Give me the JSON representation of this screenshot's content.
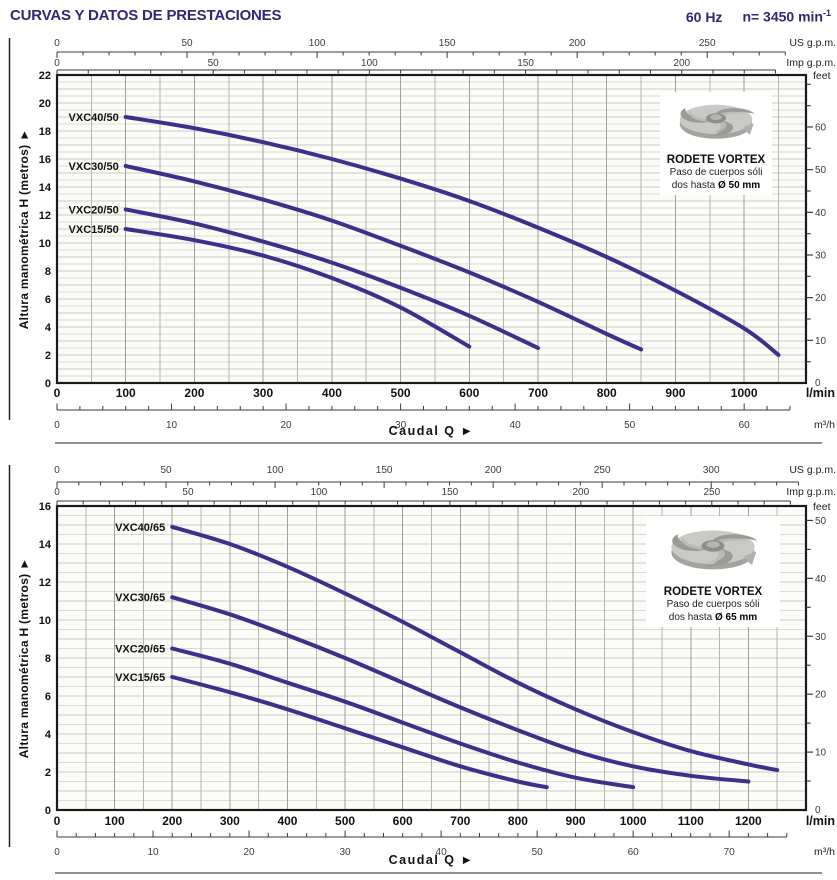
{
  "header": {
    "title": "CURVAS Y DATOS DE PRESTACIONES",
    "frequency": "60 Hz",
    "speed": "n= 3450 min",
    "speed_exponent": "-1"
  },
  "axis_labels": {
    "y_title": "Altura manométrica H  (metros)",
    "x_title": "Caudal Q",
    "us": "US g.p.m.",
    "imp": "Imp g.p.m.",
    "lmin": "l/min",
    "m3h": "m³/h",
    "feet": "feet",
    "arrow": "►"
  },
  "insets": [
    {
      "title": "RODETE VORTEX",
      "line1": "Paso de cuerpos sóli",
      "line2_prefix": "dos hasta ",
      "line2_bold": "Ø 50 mm"
    },
    {
      "title": "RODETE VORTEX",
      "line1": "Paso de cuerpos sóli",
      "line2_prefix": "dos hasta ",
      "line2_bold": "Ø 65 mm"
    }
  ],
  "colors": {
    "accent_navy": "#2f2779",
    "curve": "#39318a",
    "grid_h": "#dcdcd6",
    "grid_h_major": "#c9c9c3",
    "grid_v": "#b6b6b0",
    "grid_v_major": "#9f9f99",
    "plot_bg": "#fbfbf8",
    "axis_dark": "#1a1a1a",
    "axis_gray": "#3a3a3a"
  },
  "chart_data": [
    {
      "type": "line",
      "x_axis": {
        "unit": "l/min",
        "max": 1090,
        "grid_step": 50,
        "label_step": 100,
        "label_max": 1000
      },
      "y_axis": {
        "unit": "metros",
        "max": 22,
        "label_step": 2,
        "grid_step": 0.5
      },
      "secondary_axes": {
        "us_gpm": {
          "lmin_per_unit": 3.785,
          "tick_step": 10,
          "label_step": 50
        },
        "imp_gpm": {
          "lmin_per_unit": 4.546,
          "tick_step": 10,
          "label_step": 50
        },
        "m3h": {
          "lmin_per_unit": 16.6667,
          "tick_step": 2,
          "label_step": 10
        },
        "feet": {
          "m_per_unit": 0.3048,
          "tick_step": 5,
          "label_step": 10
        }
      },
      "series": [
        {
          "name": "VXC40/50",
          "points": [
            [
              100,
              19.0
            ],
            [
              200,
              18.2
            ],
            [
              300,
              17.2
            ],
            [
              400,
              16.0
            ],
            [
              500,
              14.6
            ],
            [
              600,
              13.0
            ],
            [
              700,
              11.1
            ],
            [
              800,
              9.0
            ],
            [
              900,
              6.6
            ],
            [
              1000,
              3.9
            ],
            [
              1050,
              2.0
            ]
          ]
        },
        {
          "name": "VXC30/50",
          "points": [
            [
              100,
              15.5
            ],
            [
              200,
              14.4
            ],
            [
              300,
              13.1
            ],
            [
              400,
              11.6
            ],
            [
              500,
              9.8
            ],
            [
              600,
              7.9
            ],
            [
              700,
              5.8
            ],
            [
              800,
              3.5
            ],
            [
              850,
              2.4
            ]
          ]
        },
        {
          "name": "VXC20/50",
          "points": [
            [
              100,
              12.4
            ],
            [
              200,
              11.4
            ],
            [
              300,
              10.1
            ],
            [
              400,
              8.6
            ],
            [
              500,
              6.8
            ],
            [
              600,
              4.8
            ],
            [
              700,
              2.5
            ]
          ]
        },
        {
          "name": "VXC15/50",
          "points": [
            [
              100,
              11.0
            ],
            [
              200,
              10.2
            ],
            [
              300,
              9.1
            ],
            [
              400,
              7.5
            ],
            [
              500,
              5.4
            ],
            [
              600,
              2.6
            ]
          ]
        }
      ]
    },
    {
      "type": "line",
      "x_axis": {
        "unit": "l/min",
        "max": 1300,
        "grid_step": 50,
        "label_step": 100,
        "label_max": 1200
      },
      "y_axis": {
        "unit": "metros",
        "max": 16,
        "label_step": 2,
        "grid_step": 0.5
      },
      "secondary_axes": {
        "us_gpm": {
          "lmin_per_unit": 3.785,
          "tick_step": 10,
          "label_step": 50
        },
        "imp_gpm": {
          "lmin_per_unit": 4.546,
          "tick_step": 10,
          "label_step": 50
        },
        "m3h": {
          "lmin_per_unit": 16.6667,
          "tick_step": 2,
          "label_step": 10
        },
        "feet": {
          "m_per_unit": 0.3048,
          "tick_step": 5,
          "label_step": 10
        }
      },
      "series": [
        {
          "name": "VXC40/65",
          "points": [
            [
              200,
              14.9
            ],
            [
              300,
              14.0
            ],
            [
              400,
              12.8
            ],
            [
              500,
              11.4
            ],
            [
              600,
              9.9
            ],
            [
              700,
              8.3
            ],
            [
              800,
              6.7
            ],
            [
              900,
              5.3
            ],
            [
              1000,
              4.1
            ],
            [
              1100,
              3.1
            ],
            [
              1200,
              2.4
            ],
            [
              1250,
              2.1
            ]
          ]
        },
        {
          "name": "VXC30/65",
          "points": [
            [
              200,
              11.2
            ],
            [
              300,
              10.3
            ],
            [
              400,
              9.2
            ],
            [
              500,
              8.0
            ],
            [
              600,
              6.7
            ],
            [
              700,
              5.4
            ],
            [
              800,
              4.2
            ],
            [
              900,
              3.1
            ],
            [
              1000,
              2.3
            ],
            [
              1100,
              1.8
            ],
            [
              1200,
              1.5
            ]
          ]
        },
        {
          "name": "VXC20/65",
          "points": [
            [
              200,
              8.5
            ],
            [
              300,
              7.7
            ],
            [
              400,
              6.7
            ],
            [
              500,
              5.7
            ],
            [
              600,
              4.6
            ],
            [
              700,
              3.5
            ],
            [
              800,
              2.5
            ],
            [
              900,
              1.7
            ],
            [
              1000,
              1.2
            ]
          ]
        },
        {
          "name": "VXC15/65",
          "points": [
            [
              200,
              7.0
            ],
            [
              300,
              6.2
            ],
            [
              400,
              5.3
            ],
            [
              500,
              4.3
            ],
            [
              600,
              3.3
            ],
            [
              700,
              2.3
            ],
            [
              800,
              1.5
            ],
            [
              850,
              1.2
            ]
          ]
        }
      ]
    }
  ]
}
